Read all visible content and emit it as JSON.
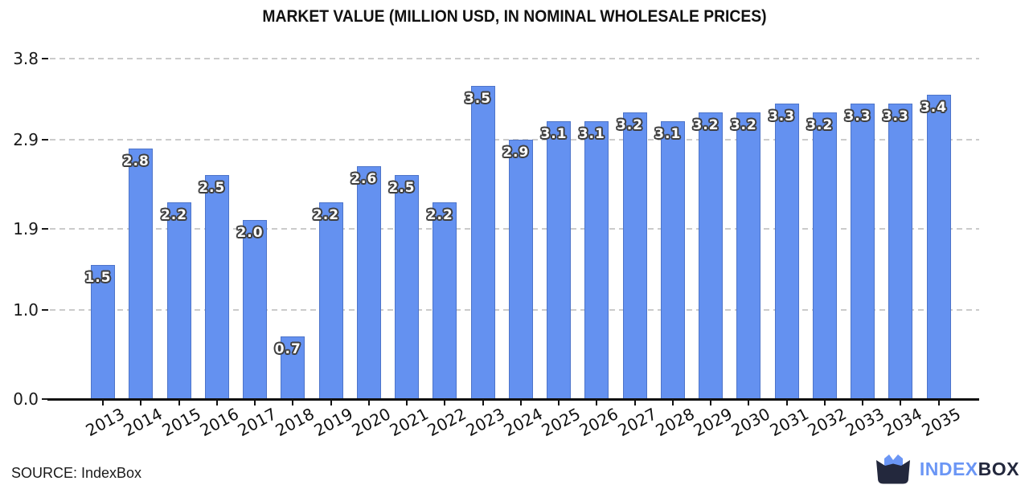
{
  "chart_data": {
    "type": "bar",
    "title": "MARKET VALUE (MILLION USD, IN NOMINAL WHOLESALE PRICES)",
    "categories": [
      "2013",
      "2014",
      "2015",
      "2016",
      "2017",
      "2018",
      "2019",
      "2020",
      "2021",
      "2022",
      "2023",
      "2024",
      "2025",
      "2026",
      "2027",
      "2028",
      "2029",
      "2030",
      "2031",
      "2032",
      "2033",
      "2034",
      "2035"
    ],
    "values": [
      1.5,
      2.8,
      2.2,
      2.5,
      2.0,
      0.7,
      2.2,
      2.6,
      2.5,
      2.2,
      3.5,
      2.9,
      3.1,
      3.1,
      3.2,
      3.1,
      3.2,
      3.2,
      3.3,
      3.2,
      3.3,
      3.3,
      3.4
    ],
    "bar_labels": [
      "1.5",
      "2.8",
      "2.2",
      "2.5",
      "2.0",
      "0.7",
      "2.2",
      "2.6",
      "2.5",
      "2.2",
      "3.5",
      "2.9",
      "3.1",
      "3.1",
      "3.2",
      "3.1",
      "3.2",
      "3.2",
      "3.3",
      "3.2",
      "3.3",
      "3.3",
      "3.4"
    ],
    "yticks": [
      "0.0",
      "1.0",
      "1.9",
      "2.9",
      "3.8"
    ],
    "ylim": [
      0,
      3.84
    ],
    "xlabel": "",
    "ylabel": "",
    "grid": "horizontal-dashed",
    "legend": "none",
    "bar_color": "#6491F0",
    "bar_edge_color": "#4d74c9",
    "bar_label_text_color": "#ffffff",
    "bar_label_outline_color": "#3f3f3f",
    "gridline_color": "#cbcbcb",
    "axis_color": "#111111"
  },
  "footer": {
    "source_label": "SOURCE: IndexBox"
  },
  "logo": {
    "text_primary": "INDEX",
    "text_secondary": "BOX",
    "color_primary": "#6B96F5",
    "color_secondary": "#23283D"
  }
}
